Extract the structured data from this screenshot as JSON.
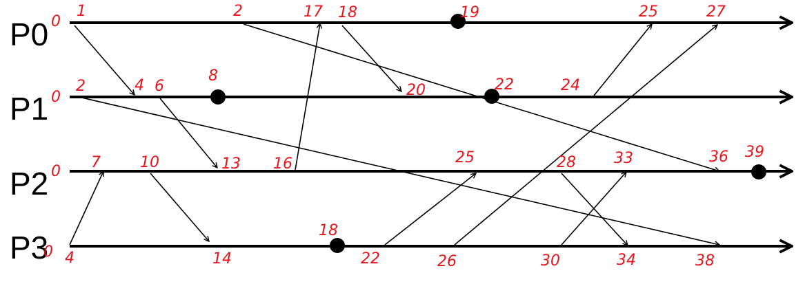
{
  "processes": [
    {
      "name": "P0",
      "origin": "0"
    },
    {
      "name": "P1",
      "origin": "0"
    },
    {
      "name": "P2",
      "origin": "0"
    },
    {
      "name": "P3",
      "origin": "0"
    }
  ],
  "timestamps": {
    "p0": [
      "1",
      "2",
      "17",
      "18",
      "19",
      "25",
      "27"
    ],
    "p1": [
      "2",
      "4",
      "6",
      "8",
      "20",
      "22",
      "24"
    ],
    "p2": [
      "7",
      "10",
      "13",
      "16",
      "25",
      "28",
      "33",
      "36",
      "39"
    ],
    "p3": [
      "4",
      "14",
      "18",
      "22",
      "26",
      "30",
      "34",
      "38"
    ]
  },
  "colors": {
    "ink": "#000000",
    "timestamp": "#e8141b",
    "background": "#ffffff"
  }
}
